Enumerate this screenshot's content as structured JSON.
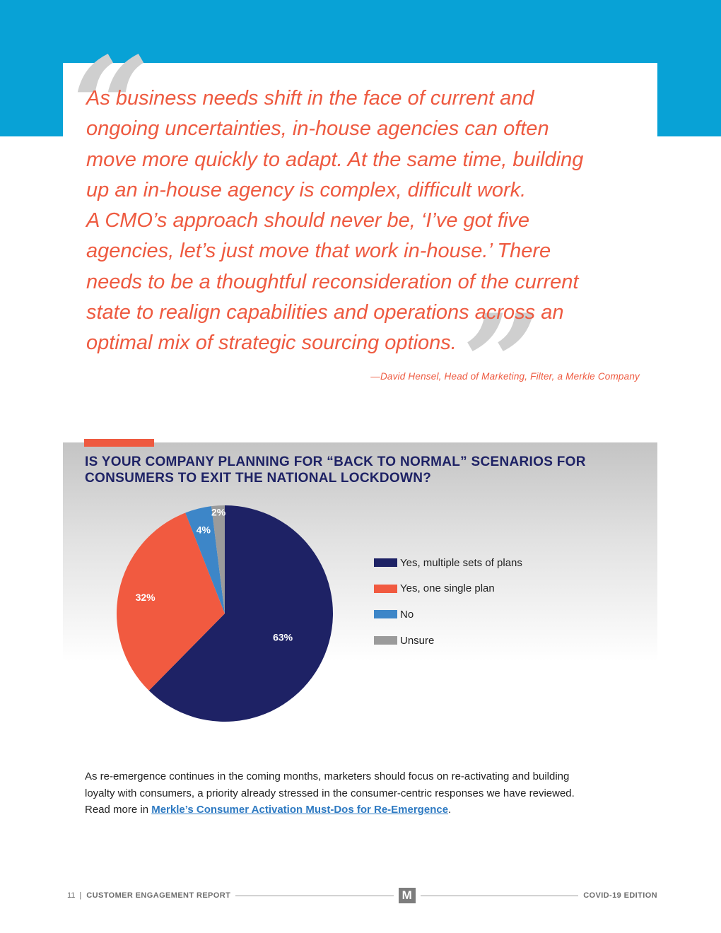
{
  "quote": {
    "lines": [
      "As business needs shift in the face of current and",
      "ongoing uncertainties, in-house agencies can often",
      "move more quickly to adapt. At the same time, building",
      "up an in-house agency is complex, difficult work.",
      "A CMO’s approach should never be, ‘I’ve got five",
      "agencies, let’s just move that work in-house.’ There",
      "needs to be a thoughtful reconsideration of the current",
      "state to realign capabilities and operations across an",
      "optimal mix of strategic sourcing options."
    ],
    "attribution": "—David Hensel, Head of Marketing, Filter, a Merkle Company"
  },
  "chart_data": {
    "type": "pie",
    "title": "IS YOUR COMPANY PLANNING FOR “BACK TO NORMAL” SCENARIOS FOR CONSUMERS TO EXIT THE NATIONAL LOCKDOWN?",
    "title_lines": [
      "IS YOUR COMPANY PLANNING FOR “BACK TO NORMAL” SCENARIOS FOR",
      "CONSUMERS TO EXIT THE NATIONAL LOCKDOWN?"
    ],
    "legend_position": "right",
    "slices": [
      {
        "label": "Yes, multiple sets of plans",
        "value": 63,
        "display": "63%",
        "color": "#1e2265"
      },
      {
        "label": "Yes, one single plan",
        "value": 32,
        "display": "32%",
        "color": "#f15a40"
      },
      {
        "label": "No",
        "value": 4,
        "display": "4%",
        "color": "#3d86c8"
      },
      {
        "label": "Unsure",
        "value": 2,
        "display": "2%",
        "color": "#9b9b9b"
      }
    ]
  },
  "body": {
    "line1": "As re-emergence continues in the coming months, marketers should focus on re-activating and building",
    "line2": "loyalty with consumers, a priority already stressed in the consumer-centric responses we have reviewed.",
    "line3_prefix": "Read more in ",
    "link_text": "Merkle’s Consumer Activation Must-Dos for Re-Emergence",
    "line3_suffix": "."
  },
  "footer": {
    "page_number": "11",
    "separator": "|",
    "report_title": "CUSTOMER ENGAGEMENT REPORT",
    "logo_letter": "M",
    "edition": "COVID-19 EDITION"
  }
}
